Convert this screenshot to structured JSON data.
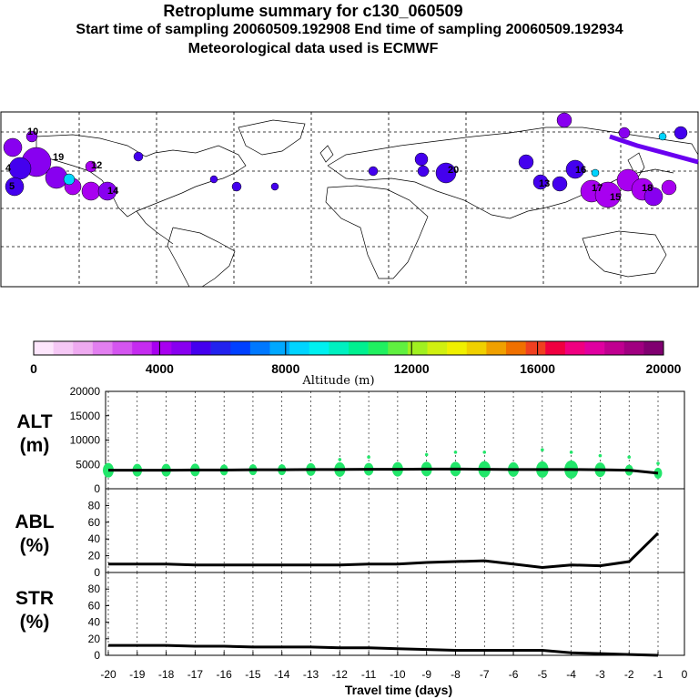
{
  "header": {
    "title": "Retroplume summary for c130_060509",
    "sampling": "Start time of sampling 20060509.192908     End time of sampling 20060509.192934",
    "met": "Meteorological data used is ECMWF"
  },
  "colorbar": {
    "label": "Altitude (m)",
    "ticks": [
      "0",
      "4000",
      "8000",
      "12000",
      "16000",
      "20000"
    ],
    "colors": [
      "#fde6fc",
      "#f5c8f5",
      "#eeaaf0",
      "#e27ff0",
      "#d455f0",
      "#c52bf0",
      "#a800f0",
      "#8800f0",
      "#4400ee",
      "#2222ee",
      "#0040ff",
      "#0078ff",
      "#00a8ff",
      "#00d4ff",
      "#00f0f0",
      "#00f0c0",
      "#00f090",
      "#20f060",
      "#60f040",
      "#a0f020",
      "#d0f010",
      "#f0f000",
      "#f0d000",
      "#f0a000",
      "#f07000",
      "#f04020",
      "#f00040",
      "#f00080",
      "#e000a0",
      "#c00090",
      "#a00080",
      "#800070"
    ]
  },
  "chart_data": [
    {
      "type": "scatter+line",
      "panel": "ALT",
      "ylabel": "ALT\n(m)",
      "ylabel_lines": [
        "ALT",
        "(m)"
      ],
      "ylim": [
        0,
        20000
      ],
      "yticks": [
        0,
        5000,
        10000,
        15000,
        20000
      ],
      "x": [
        -20,
        -19,
        -18,
        -17,
        -16,
        -15,
        -14,
        -13,
        -12,
        -11,
        -10,
        -9,
        -8,
        -7,
        -6,
        -5,
        -4,
        -3,
        -2,
        -1
      ],
      "median": [
        3800,
        3800,
        3800,
        3850,
        3850,
        3900,
        3900,
        3950,
        3950,
        4000,
        4000,
        4050,
        4050,
        4000,
        3950,
        3950,
        3950,
        3900,
        3800,
        3200
      ],
      "blob_size": [
        8,
        7,
        7,
        7,
        6,
        6,
        6,
        7,
        8,
        7,
        8,
        8,
        8,
        9,
        8,
        9,
        10,
        8,
        6,
        6
      ],
      "outliers": [
        [
          -12,
          6000
        ],
        [
          -11,
          6500
        ],
        [
          -9,
          7000
        ],
        [
          -8,
          7500
        ],
        [
          -7,
          7500
        ],
        [
          -5,
          8000
        ],
        [
          -4,
          7500
        ],
        [
          -3,
          6800
        ],
        [
          -2,
          6500
        ],
        [
          -1,
          5200
        ]
      ]
    },
    {
      "type": "line",
      "panel": "ABL",
      "ylabel_lines": [
        "ABL",
        "(%)"
      ],
      "ylim": [
        0,
        100
      ],
      "yticks": [
        0,
        20,
        40,
        60,
        80
      ],
      "x": [
        -20,
        -19,
        -18,
        -17,
        -16,
        -15,
        -14,
        -13,
        -12,
        -11,
        -10,
        -9,
        -8,
        -7,
        -6,
        -5,
        -4,
        -3,
        -2,
        -1
      ],
      "values": [
        10,
        10,
        10,
        9,
        9,
        9,
        9,
        9,
        9,
        10,
        10,
        12,
        13,
        14,
        10,
        6,
        9,
        8,
        13,
        47
      ]
    },
    {
      "type": "line",
      "panel": "STR",
      "ylabel_lines": [
        "STR",
        "(%)"
      ],
      "ylim": [
        0,
        100
      ],
      "yticks": [
        0,
        20,
        40,
        60,
        80
      ],
      "x": [
        -20,
        -19,
        -18,
        -17,
        -16,
        -15,
        -14,
        -13,
        -12,
        -11,
        -10,
        -9,
        -8,
        -7,
        -6,
        -5,
        -4,
        -3,
        -2,
        -1
      ],
      "values": [
        12,
        12,
        12,
        11,
        11,
        10,
        10,
        10,
        9,
        9,
        8,
        7,
        6,
        6,
        6,
        6,
        3,
        2,
        1,
        0
      ]
    }
  ],
  "xaxis": {
    "label": "Travel time (days)",
    "ticks": [
      "-20",
      "-19",
      "-18",
      "-17",
      "-16",
      "-15",
      "-14",
      "-13",
      "-12",
      "-11",
      "-10",
      "-9",
      "-8",
      "-7",
      "-6",
      "-5",
      "-4",
      "-3",
      "-2",
      "-1",
      "0"
    ]
  },
  "map_labels": [
    {
      "text": "10",
      "color": "#8800f0"
    },
    {
      "text": "19",
      "color": "#8800f0"
    },
    {
      "text": "4",
      "color": "#4400ee"
    },
    {
      "text": "5",
      "color": "#4400ee"
    },
    {
      "text": "12",
      "color": "#a800f0"
    },
    {
      "text": "14",
      "color": "#a800f0"
    },
    {
      "text": "20",
      "color": "#4400ee"
    },
    {
      "text": "13",
      "color": "#4400ee"
    },
    {
      "text": "16",
      "color": "#a800f0"
    },
    {
      "text": "17",
      "color": "#a800f0"
    },
    {
      "text": "15",
      "color": "#a800f0"
    },
    {
      "text": "18",
      "color": "#4400ee"
    }
  ]
}
